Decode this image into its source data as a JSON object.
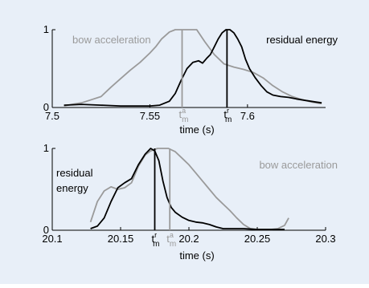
{
  "colors": {
    "background": "#e8eff8",
    "residual_energy": "#000000",
    "bow_acceleration": "#9a9a9a",
    "axis": "#000000"
  },
  "chart_data": [
    {
      "type": "line",
      "xlabel": "time (s)",
      "ylabel": "",
      "xlim": [
        7.5,
        7.64
      ],
      "ylim": [
        0,
        1
      ],
      "x_ticks": [
        7.5,
        7.55,
        7.6
      ],
      "x_tick_labels": [
        "7.5",
        "7.55",
        "7.6"
      ],
      "y_ticks": [
        0,
        1
      ],
      "y_tick_labels": [
        "0",
        "1"
      ],
      "grid": false,
      "series": [
        {
          "name": "bow acceleration",
          "color": "#9a9a9a",
          "x": [
            7.506,
            7.51,
            7.515,
            7.52,
            7.525,
            7.53,
            7.535,
            7.54,
            7.545,
            7.55,
            7.553,
            7.556,
            7.56,
            7.563,
            7.566,
            7.568,
            7.571,
            7.574,
            7.578,
            7.583,
            7.588,
            7.593,
            7.598,
            7.603,
            7.608,
            7.613,
            7.618,
            7.623,
            7.628,
            7.633,
            7.638
          ],
          "y": [
            0.02,
            0.04,
            0.06,
            0.1,
            0.14,
            0.26,
            0.37,
            0.48,
            0.58,
            0.7,
            0.78,
            0.88,
            0.97,
            1.0,
            1.0,
            1.0,
            1.0,
            1.0,
            0.85,
            0.68,
            0.56,
            0.52,
            0.49,
            0.45,
            0.38,
            0.28,
            0.2,
            0.14,
            0.1,
            0.07,
            0.05
          ]
        },
        {
          "name": "residual energy",
          "color": "#000000",
          "x": [
            7.506,
            7.515,
            7.525,
            7.535,
            7.545,
            7.55,
            7.555,
            7.56,
            7.563,
            7.566,
            7.569,
            7.572,
            7.575,
            7.577,
            7.579,
            7.581,
            7.583,
            7.585,
            7.587,
            7.589,
            7.591,
            7.593,
            7.595,
            7.597,
            7.599,
            7.601,
            7.604,
            7.607,
            7.61,
            7.613,
            7.617,
            7.621,
            7.625,
            7.63,
            7.635,
            7.638
          ],
          "y": [
            0.03,
            0.04,
            0.03,
            0.02,
            0.02,
            0.02,
            0.03,
            0.08,
            0.18,
            0.35,
            0.5,
            0.58,
            0.6,
            0.57,
            0.63,
            0.68,
            0.78,
            0.88,
            0.96,
            1.0,
            1.0,
            0.96,
            0.88,
            0.78,
            0.62,
            0.5,
            0.38,
            0.28,
            0.2,
            0.16,
            0.14,
            0.13,
            0.11,
            0.09,
            0.07,
            0.06
          ]
        }
      ],
      "annotations": [
        {
          "text": "bow acceleration",
          "color": "#9a9a9a"
        },
        {
          "text": "residual energy",
          "color": "#000000"
        }
      ],
      "markers": [
        {
          "label": "t",
          "sup": "a",
          "sub": "m",
          "x": 7.5665,
          "color": "#9a9a9a"
        },
        {
          "label": "t",
          "sup": "r",
          "sub": "m",
          "x": 7.5895,
          "color": "#000000"
        }
      ]
    },
    {
      "type": "line",
      "xlabel": "time (s)",
      "ylabel": "",
      "xlim": [
        20.1,
        20.3
      ],
      "ylim": [
        0,
        1
      ],
      "x_ticks": [
        20.1,
        20.15,
        20.2,
        20.25,
        20.3
      ],
      "x_tick_labels": [
        "20.1",
        "20.15",
        "20.2",
        "20.25",
        "20.3"
      ],
      "y_ticks": [
        0,
        1
      ],
      "y_tick_labels": [
        "0",
        "1"
      ],
      "grid": false,
      "series": [
        {
          "name": "bow acceleration",
          "color": "#9a9a9a",
          "x": [
            20.128,
            20.133,
            20.138,
            20.143,
            20.148,
            20.153,
            20.158,
            20.163,
            20.168,
            20.172,
            20.177,
            20.182,
            20.185,
            20.19,
            20.195,
            20.2,
            20.205,
            20.21,
            20.215,
            20.22,
            20.225,
            20.23,
            20.235,
            20.24,
            20.245,
            20.25,
            20.255,
            20.26,
            20.265,
            20.27,
            20.273
          ],
          "y": [
            0.1,
            0.35,
            0.48,
            0.53,
            0.5,
            0.52,
            0.58,
            0.78,
            0.92,
            0.97,
            1.0,
            1.0,
            1.0,
            0.96,
            0.88,
            0.8,
            0.7,
            0.6,
            0.5,
            0.4,
            0.32,
            0.24,
            0.15,
            0.07,
            0.02,
            0.01,
            0.01,
            0.01,
            0.02,
            0.06,
            0.15
          ]
        },
        {
          "name": "residual energy",
          "color": "#000000",
          "x": [
            20.128,
            20.133,
            20.138,
            20.143,
            20.148,
            20.153,
            20.158,
            20.163,
            20.168,
            20.172,
            20.175,
            20.178,
            20.181,
            20.184,
            20.187,
            20.19,
            20.195,
            20.2,
            20.205,
            20.21,
            20.215,
            20.22,
            20.225,
            20.23,
            20.235,
            20.24,
            20.25,
            20.26,
            20.27
          ],
          "y": [
            0.02,
            0.05,
            0.15,
            0.35,
            0.52,
            0.58,
            0.63,
            0.8,
            0.93,
            1.0,
            0.97,
            0.85,
            0.6,
            0.4,
            0.28,
            0.22,
            0.16,
            0.12,
            0.1,
            0.09,
            0.07,
            0.04,
            0.02,
            0.02,
            0.02,
            0.02,
            0.01,
            0.01,
            0.01
          ]
        }
      ],
      "annotations": [
        {
          "text": "residual",
          "color": "#000000"
        },
        {
          "text": "energy",
          "color": "#000000"
        },
        {
          "text": "bow acceleration",
          "color": "#9a9a9a"
        }
      ],
      "markers": [
        {
          "label": "t",
          "sup": "r",
          "sub": "m",
          "x": 20.175,
          "color": "#000000"
        },
        {
          "label": "t",
          "sup": "a",
          "sub": "m",
          "x": 20.186,
          "color": "#9a9a9a"
        }
      ]
    }
  ]
}
